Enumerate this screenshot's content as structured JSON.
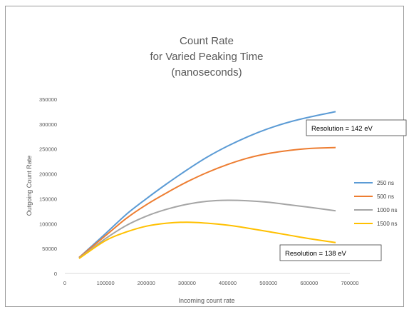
{
  "chart_data": {
    "type": "line",
    "title_lines": [
      "Count Rate",
      "for Varied Peaking Time",
      "(nanoseconds)"
    ],
    "xlabel": "Incoming count rate",
    "ylabel": "Outgoing Count Rate",
    "xlim": [
      0,
      700000
    ],
    "ylim": [
      0,
      350000
    ],
    "x_ticks": [
      "0",
      "100000",
      "200000",
      "300000",
      "400000",
      "500000",
      "600000",
      "700000"
    ],
    "y_ticks": [
      "0",
      "50000",
      "100000",
      "150000",
      "200000",
      "250000",
      "300000",
      "350000"
    ],
    "grid": false,
    "legend_position": "right",
    "x": [
      35000,
      100000,
      150000,
      200000,
      250000,
      300000,
      350000,
      400000,
      450000,
      500000,
      550000,
      600000,
      665000
    ],
    "series": [
      {
        "name": "250 ns",
        "color": "#5b9bd5",
        "values": [
          32000,
          80000,
          118000,
          150000,
          180000,
          208000,
          234000,
          256000,
          275000,
          291000,
          304000,
          314000,
          325000
        ]
      },
      {
        "name": "500 ns",
        "color": "#ed7d31",
        "values": [
          32000,
          76000,
          110000,
          138000,
          162000,
          184000,
          203000,
          219000,
          232000,
          241000,
          247000,
          251000,
          253000
        ]
      },
      {
        "name": "1000 ns",
        "color": "#a5a5a5",
        "values": [
          31000,
          70000,
          96000,
          115000,
          129000,
          139000,
          145000,
          147000,
          146000,
          143000,
          138000,
          133000,
          126000
        ]
      },
      {
        "name": "1500 ns",
        "color": "#ffc000",
        "values": [
          30000,
          66000,
          83000,
          95000,
          101000,
          103000,
          101000,
          97000,
          91000,
          84000,
          77000,
          70000,
          62000
        ]
      }
    ],
    "annotations": [
      {
        "text": "Resolution = 142 eV"
      },
      {
        "text": "Resolution = 138 eV"
      }
    ]
  }
}
